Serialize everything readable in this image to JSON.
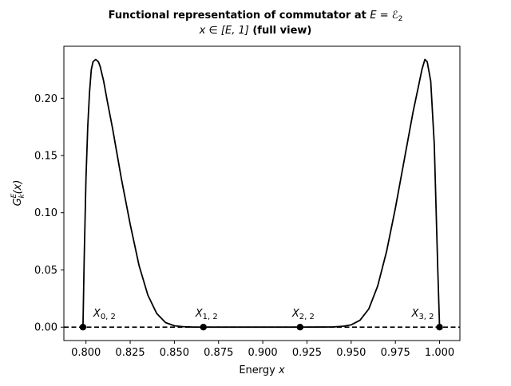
{
  "chart_data": {
    "type": "line",
    "title_line1_prefix": "Functional representation of commutator at ",
    "title_line1_math": "E = ℰ",
    "title_line1_math_sub": "2",
    "title_line2_math": "x ∈ [E, 1]",
    "title_line2_suffix": " (full view)",
    "xlabel_prefix": "Energy ",
    "xlabel_var": "x",
    "ylabel_main": "G",
    "ylabel_sub": "k",
    "ylabel_sup": "E",
    "ylabel_arg": "(x)",
    "xlim": [
      0.7875,
      1.0115
    ],
    "ylim": [
      -0.0117,
      0.2455
    ],
    "x_ticks": [
      "0.800",
      "0.825",
      "0.850",
      "0.875",
      "0.900",
      "0.925",
      "0.950",
      "0.975",
      "1.000"
    ],
    "x_tick_values": [
      0.8,
      0.825,
      0.85,
      0.875,
      0.9,
      0.925,
      0.95,
      0.975,
      1.0
    ],
    "y_ticks": [
      "0.00",
      "0.05",
      "0.10",
      "0.15",
      "0.20"
    ],
    "y_tick_values": [
      0.0,
      0.05,
      0.1,
      0.15,
      0.2
    ],
    "series": [
      {
        "color": "#000000",
        "x": [
          0.7983,
          0.799,
          0.8,
          0.801,
          0.802,
          0.803,
          0.804,
          0.8055,
          0.807,
          0.808,
          0.81,
          0.812,
          0.815,
          0.82,
          0.825,
          0.83,
          0.835,
          0.84,
          0.845,
          0.85,
          0.855,
          0.86,
          0.866,
          0.875,
          0.9,
          0.921,
          0.94,
          0.945,
          0.95,
          0.955,
          0.96,
          0.965,
          0.97,
          0.975,
          0.98,
          0.985,
          0.988,
          0.99,
          0.9917,
          0.993,
          0.995,
          0.997,
          0.999,
          1.0
        ],
        "y": [
          0.0,
          0.06,
          0.13,
          0.175,
          0.205,
          0.225,
          0.232,
          0.234,
          0.232,
          0.228,
          0.215,
          0.198,
          0.174,
          0.13,
          0.09,
          0.054,
          0.028,
          0.012,
          0.004,
          0.0012,
          0.0004,
          0.0001,
          0.0,
          0.0,
          0.0,
          0.0,
          0.0002,
          0.0007,
          0.002,
          0.006,
          0.016,
          0.036,
          0.066,
          0.104,
          0.146,
          0.188,
          0.21,
          0.225,
          0.234,
          0.232,
          0.215,
          0.16,
          0.05,
          0.0
        ]
      }
    ],
    "reference_line": {
      "y": 0.0,
      "style": "dashed",
      "color": "#000000"
    },
    "marked_points": [
      {
        "x": 0.7983,
        "y": 0.0,
        "label": "X",
        "sub": "0, 2"
      },
      {
        "x": 0.8664,
        "y": 0.0,
        "label": "X",
        "sub": "1, 2"
      },
      {
        "x": 0.9211,
        "y": 0.0,
        "label": "X",
        "sub": "2, 2"
      },
      {
        "x": 1.0,
        "y": 0.0,
        "label": "X",
        "sub": "3, 2"
      }
    ],
    "grid": false
  }
}
